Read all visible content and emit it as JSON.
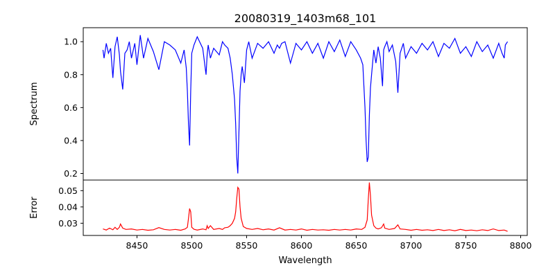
{
  "chart_data": [
    {
      "type": "line",
      "title": "20080319_1403m68_101",
      "xlabel": "",
      "ylabel": "Spectrum",
      "xlim": [
        8401,
        8806
      ],
      "ylim": [
        0.16,
        1.085
      ],
      "xticks": [
        8450,
        8500,
        8550,
        8600,
        8650,
        8700,
        8750,
        8800
      ],
      "yticks": [
        0.2,
        0.4,
        0.6,
        0.8,
        1.0
      ],
      "yticklabels": [
        "0.2",
        "0.4",
        "0.6",
        "0.8",
        "1.0"
      ],
      "color": "#0000ff",
      "grid": false,
      "series": [
        {
          "x": [
            8419,
            8420,
            8422,
            8424,
            8426,
            8428,
            8430,
            8432,
            8434,
            8435,
            8437,
            8439,
            8441,
            8443,
            8445,
            8448,
            8450,
            8453,
            8456,
            8460,
            8465,
            8470,
            8475,
            8480,
            8485,
            8490,
            8493,
            8495,
            8496,
            8497,
            8498,
            8499,
            8500,
            8502,
            8505,
            8510,
            8513,
            8514,
            8515,
            8517,
            8520,
            8525,
            8528,
            8530,
            8533,
            8535,
            8537,
            8539,
            8540,
            8541,
            8542,
            8543,
            8544,
            8545,
            8546,
            8548,
            8550,
            8552,
            8555,
            8560,
            8565,
            8570,
            8575,
            8578,
            8580,
            8582,
            8585,
            8590,
            8595,
            8600,
            8605,
            8610,
            8615,
            8620,
            8625,
            8630,
            8635,
            8640,
            8645,
            8650,
            8654,
            8656,
            8658,
            8659,
            8660,
            8661,
            8662,
            8663,
            8664,
            8666,
            8668,
            8670,
            8672,
            8674,
            8675,
            8676,
            8678,
            8680,
            8683,
            8686,
            8688,
            8690,
            8693,
            8695,
            8700,
            8705,
            8710,
            8715,
            8720,
            8725,
            8730,
            8735,
            8740,
            8745,
            8750,
            8755,
            8760,
            8765,
            8770,
            8775,
            8780,
            8783,
            8785,
            8786,
            8788
          ],
          "y": [
            0.95,
            0.9,
            0.99,
            0.93,
            0.96,
            0.78,
            0.97,
            1.03,
            0.92,
            0.82,
            0.71,
            0.93,
            0.95,
            1.0,
            0.9,
            0.99,
            0.86,
            1.04,
            0.9,
            1.02,
            0.94,
            0.83,
            1.0,
            0.98,
            0.95,
            0.87,
            0.95,
            0.84,
            0.7,
            0.5,
            0.37,
            0.7,
            0.93,
            0.98,
            1.03,
            0.96,
            0.8,
            0.92,
            0.98,
            0.9,
            0.96,
            0.92,
            1.0,
            0.98,
            0.96,
            0.9,
            0.8,
            0.65,
            0.5,
            0.3,
            0.2,
            0.45,
            0.7,
            0.8,
            0.85,
            0.75,
            0.95,
            1.0,
            0.9,
            0.99,
            0.96,
            1.0,
            0.93,
            0.98,
            0.96,
            0.99,
            1.0,
            0.87,
            0.99,
            0.95,
            1.0,
            0.93,
            0.99,
            0.9,
            1.0,
            0.94,
            1.01,
            0.91,
            1.0,
            0.95,
            0.9,
            0.86,
            0.6,
            0.4,
            0.27,
            0.3,
            0.55,
            0.72,
            0.8,
            0.95,
            0.87,
            0.97,
            0.9,
            0.73,
            0.95,
            0.97,
            1.0,
            0.94,
            0.98,
            0.88,
            0.69,
            0.93,
            0.99,
            0.9,
            0.97,
            0.93,
            0.99,
            0.95,
            1.0,
            0.91,
            0.99,
            0.96,
            1.02,
            0.93,
            0.97,
            0.91,
            1.0,
            0.94,
            0.98,
            0.9,
            0.99,
            0.93,
            0.9,
            0.98,
            1.0
          ]
        }
      ]
    },
    {
      "type": "line",
      "title": "",
      "xlabel": "Wavelength",
      "ylabel": "Error",
      "xlim": [
        8401,
        8806
      ],
      "ylim": [
        0.0225,
        0.0565
      ],
      "xticks": [
        8450,
        8500,
        8550,
        8600,
        8650,
        8700,
        8750,
        8800
      ],
      "xticklabels": [
        "8450",
        "8500",
        "8550",
        "8600",
        "8650",
        "8700",
        "8750",
        "8800"
      ],
      "yticks": [
        0.03,
        0.04,
        0.05
      ],
      "yticklabels": [
        "0.03",
        "0.04",
        "0.05"
      ],
      "color": "#ff0000",
      "grid": false,
      "series": [
        {
          "x": [
            8419,
            8422,
            8425,
            8428,
            8430,
            8432,
            8434,
            8435,
            8437,
            8440,
            8445,
            8450,
            8455,
            8460,
            8465,
            8470,
            8475,
            8480,
            8485,
            8490,
            8494,
            8496,
            8497,
            8498,
            8499,
            8500,
            8502,
            8505,
            8510,
            8513,
            8514,
            8515,
            8517,
            8520,
            8525,
            8528,
            8530,
            8533,
            8535,
            8537,
            8539,
            8540,
            8541,
            8542,
            8543,
            8544,
            8545,
            8547,
            8550,
            8555,
            8560,
            8565,
            8570,
            8575,
            8580,
            8585,
            8590,
            8595,
            8600,
            8605,
            8610,
            8615,
            8620,
            8625,
            8630,
            8635,
            8640,
            8645,
            8650,
            8655,
            8658,
            8660,
            8661,
            8662,
            8663,
            8664,
            8666,
            8668,
            8670,
            8673,
            8675,
            8676,
            8680,
            8685,
            8688,
            8690,
            8695,
            8700,
            8705,
            8710,
            8715,
            8720,
            8725,
            8730,
            8735,
            8740,
            8745,
            8750,
            8755,
            8760,
            8765,
            8770,
            8775,
            8780,
            8785,
            8788
          ],
          "y": [
            0.0265,
            0.0258,
            0.027,
            0.026,
            0.0275,
            0.0262,
            0.0275,
            0.0295,
            0.027,
            0.0262,
            0.0265,
            0.0258,
            0.0262,
            0.0257,
            0.026,
            0.0273,
            0.0262,
            0.0258,
            0.0262,
            0.0257,
            0.0265,
            0.0275,
            0.033,
            0.039,
            0.037,
            0.0275,
            0.0263,
            0.0258,
            0.0265,
            0.026,
            0.0285,
            0.0268,
            0.0285,
            0.0262,
            0.0268,
            0.0262,
            0.0272,
            0.0275,
            0.0285,
            0.03,
            0.033,
            0.037,
            0.045,
            0.052,
            0.051,
            0.04,
            0.033,
            0.028,
            0.0268,
            0.0262,
            0.0268,
            0.026,
            0.0265,
            0.0258,
            0.0272,
            0.0258,
            0.0262,
            0.0258,
            0.0265,
            0.0257,
            0.0262,
            0.0258,
            0.026,
            0.0257,
            0.0262,
            0.0258,
            0.0262,
            0.0258,
            0.0265,
            0.0262,
            0.0275,
            0.032,
            0.045,
            0.055,
            0.047,
            0.035,
            0.0285,
            0.027,
            0.0265,
            0.0272,
            0.0295,
            0.027,
            0.0262,
            0.0268,
            0.029,
            0.0265,
            0.0262,
            0.0257,
            0.0262,
            0.0257,
            0.026,
            0.0255,
            0.0262,
            0.0255,
            0.026,
            0.0254,
            0.0262,
            0.0255,
            0.0258,
            0.0254,
            0.026,
            0.0255,
            0.0265,
            0.0255,
            0.0258,
            0.025
          ]
        }
      ]
    }
  ]
}
